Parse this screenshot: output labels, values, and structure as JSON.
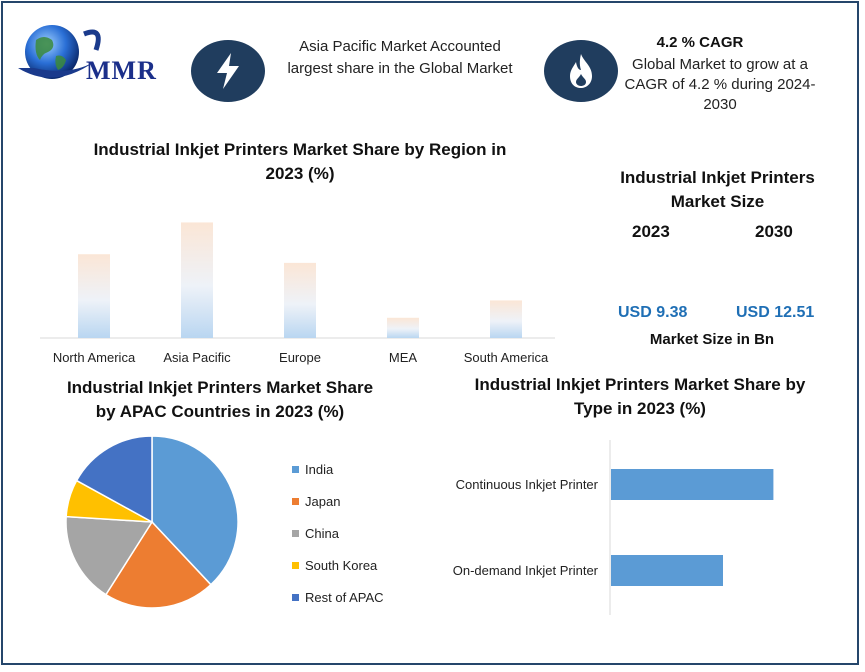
{
  "logo": {
    "text": "MMR"
  },
  "header": {
    "left_text": "Asia Pacific Market Accounted largest share in the Global Market",
    "right_title": "4.2 % CAGR",
    "right_text": "Global Market to grow at a CAGR of 4.2 % during 2024-2030",
    "left_icon": "lightning-icon",
    "right_icon": "flame-icon"
  },
  "market_size": {
    "title": "Industrial Inkjet Printers Market Size",
    "year_a": "2023",
    "year_b": "2030",
    "value_a": "USD 9.38",
    "value_b": "USD 12.51",
    "unit_label": "Market Size in Bn"
  },
  "colors": {
    "india": "#5b9bd5",
    "japan": "#ed7d31",
    "china": "#a5a5a5",
    "south_korea": "#ffc000",
    "rest_of_apac": "#4472c4",
    "type_bar": "#5b9bd5",
    "dark_navy": "#203d5e"
  },
  "chart_data": [
    {
      "type": "bar",
      "title": "Industrial Inkjet Printers Market Share by Region in 2023 (%)",
      "categories": [
        "North America",
        "Asia Pacific",
        "Europe",
        "MEA",
        "South America"
      ],
      "values": [
        29,
        40,
        26,
        7,
        13
      ],
      "ylim": [
        0,
        45
      ],
      "grid": false,
      "value_labels_shown": false
    },
    {
      "type": "pie",
      "title": "Industrial Inkjet Printers Market Share by APAC Countries in 2023 (%)",
      "categories": [
        "India",
        "Japan",
        "China",
        "South Korea",
        "Rest of APAC"
      ],
      "values": [
        38,
        21,
        17,
        7,
        17
      ],
      "legend": "right"
    },
    {
      "type": "bar",
      "orientation": "horizontal",
      "title": "Industrial Inkjet Printers Market Share by Type in 2023 (%)",
      "categories": [
        "Continuous Inkjet Printer",
        "On-demand Inkjet Printer"
      ],
      "values": [
        58,
        40
      ],
      "xlim": [
        0,
        100
      ],
      "grid": false
    }
  ]
}
